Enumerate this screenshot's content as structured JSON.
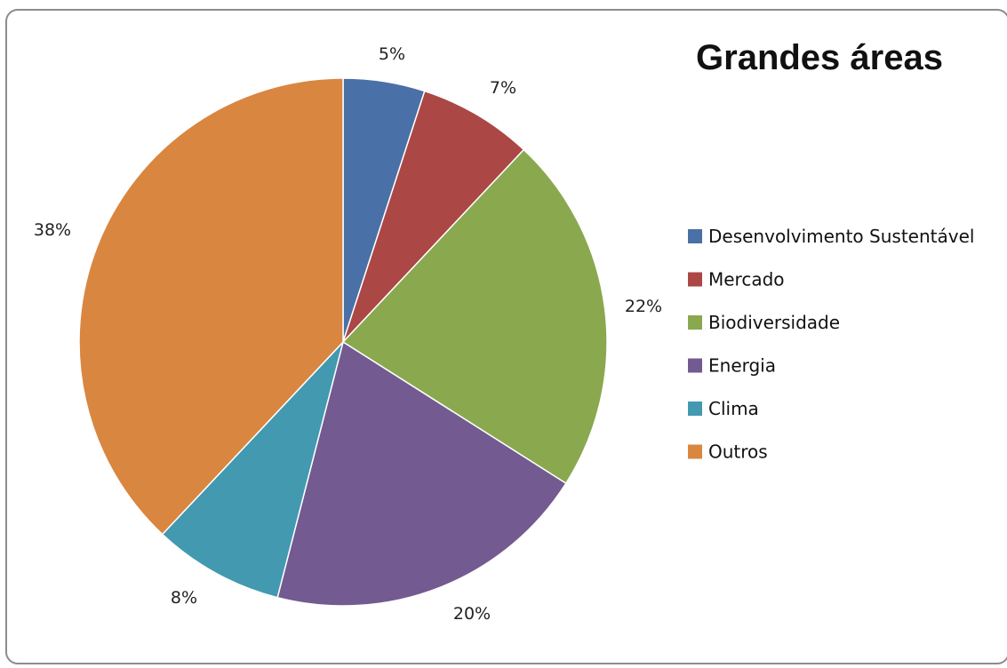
{
  "chart_data": {
    "type": "pie",
    "title": "Grandes áreas",
    "legend_position": "right",
    "series": [
      {
        "name": "Desenvolvimento Sustentável",
        "value": 5,
        "label": "5%",
        "color": "#4a70a8"
      },
      {
        "name": "Mercado",
        "value": 7,
        "label": "7%",
        "color": "#ab4745"
      },
      {
        "name": "Biodiversidade",
        "value": 22,
        "label": "22%",
        "color": "#8aa84e"
      },
      {
        "name": "Energia",
        "value": 20,
        "label": "20%",
        "color": "#735a91"
      },
      {
        "name": "Clima",
        "value": 8,
        "label": "8%",
        "color": "#4299b0"
      },
      {
        "name": "Outros",
        "value": 38,
        "label": "38%",
        "color": "#d98640"
      }
    ]
  }
}
